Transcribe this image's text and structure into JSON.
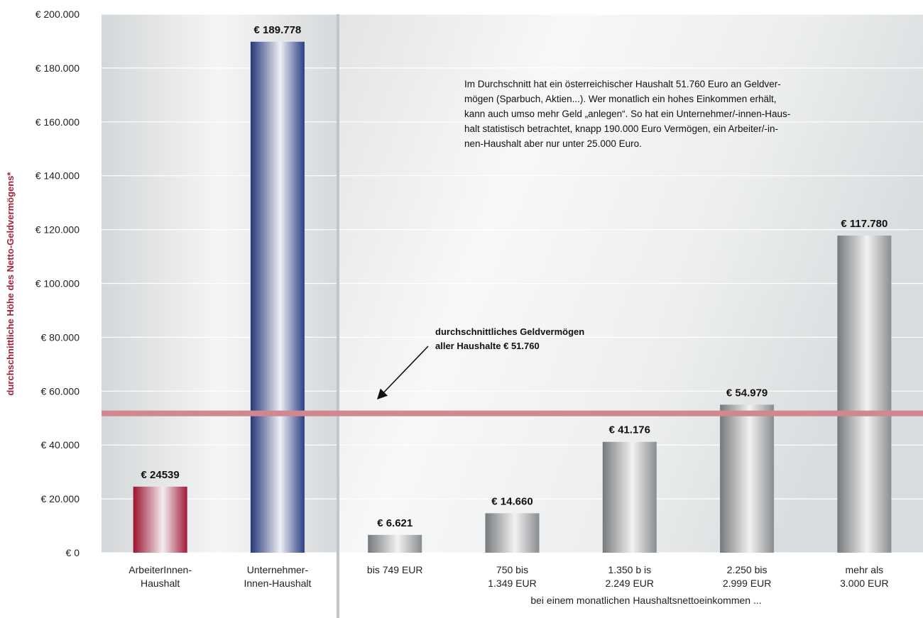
{
  "chart_data": {
    "type": "bar",
    "ylabel": "durchschnittliche Höhe des Netto-Geldvermögens*",
    "ylim": [
      0,
      200000
    ],
    "yticks": [
      "€ 0",
      "€ 20.000",
      "€ 40.000",
      "€ 60.000",
      "€ 80.000",
      "€ 100.000",
      "€ 120.000",
      "€ 140.000",
      "€ 160.000",
      "€ 180.000",
      "€ 200.000"
    ],
    "grid": true,
    "categories": [
      [
        "ArbeiterInnen-",
        "Haushalt"
      ],
      [
        "Unternehmer-",
        "Innen-Haushalt"
      ],
      [
        "bis 749 EUR"
      ],
      [
        "750 bis",
        "1.349 EUR"
      ],
      [
        "1.350 b is",
        "2.249 EUR"
      ],
      [
        "2.250 bis",
        "2.999 EUR"
      ],
      [
        "mehr als",
        "3.000 EUR"
      ]
    ],
    "values": [
      24539,
      189778,
      6621,
      14660,
      41176,
      54979,
      117780
    ],
    "value_labels": [
      "€ 24539",
      "€ 189.778",
      "€ 6.621",
      "€ 14.660",
      "€ 41.176",
      "€ 54.979",
      "€ 117.780"
    ],
    "bar_colors": [
      "red",
      "blue",
      "gray",
      "gray",
      "gray",
      "gray",
      "gray"
    ],
    "xlabel": "bei einem monatlichen Haushaltsnettoeinkommen ...",
    "reference_line": {
      "value": 51760,
      "label": [
        "durchschnittliches Geldvermögen",
        "aller Haushalte € 51.760"
      ],
      "color": "#d08890"
    },
    "annotation": [
      "Im Durchschnitt hat ein österreichischer Haushalt 51.760 Euro an Geldver-",
      "mögen (Sparbuch, Aktien...). Wer monatlich ein hohes Einkommen erhält,",
      "kann auch umso mehr Geld „anlegen“. So hat ein Unternehmer/-innen-Haus-",
      "halt statistisch betrachtet, knapp 190.000 Euro Vermögen, ein Arbeiter/-in-",
      "nen-Haushalt aber nur unter 25.000 Euro."
    ]
  }
}
